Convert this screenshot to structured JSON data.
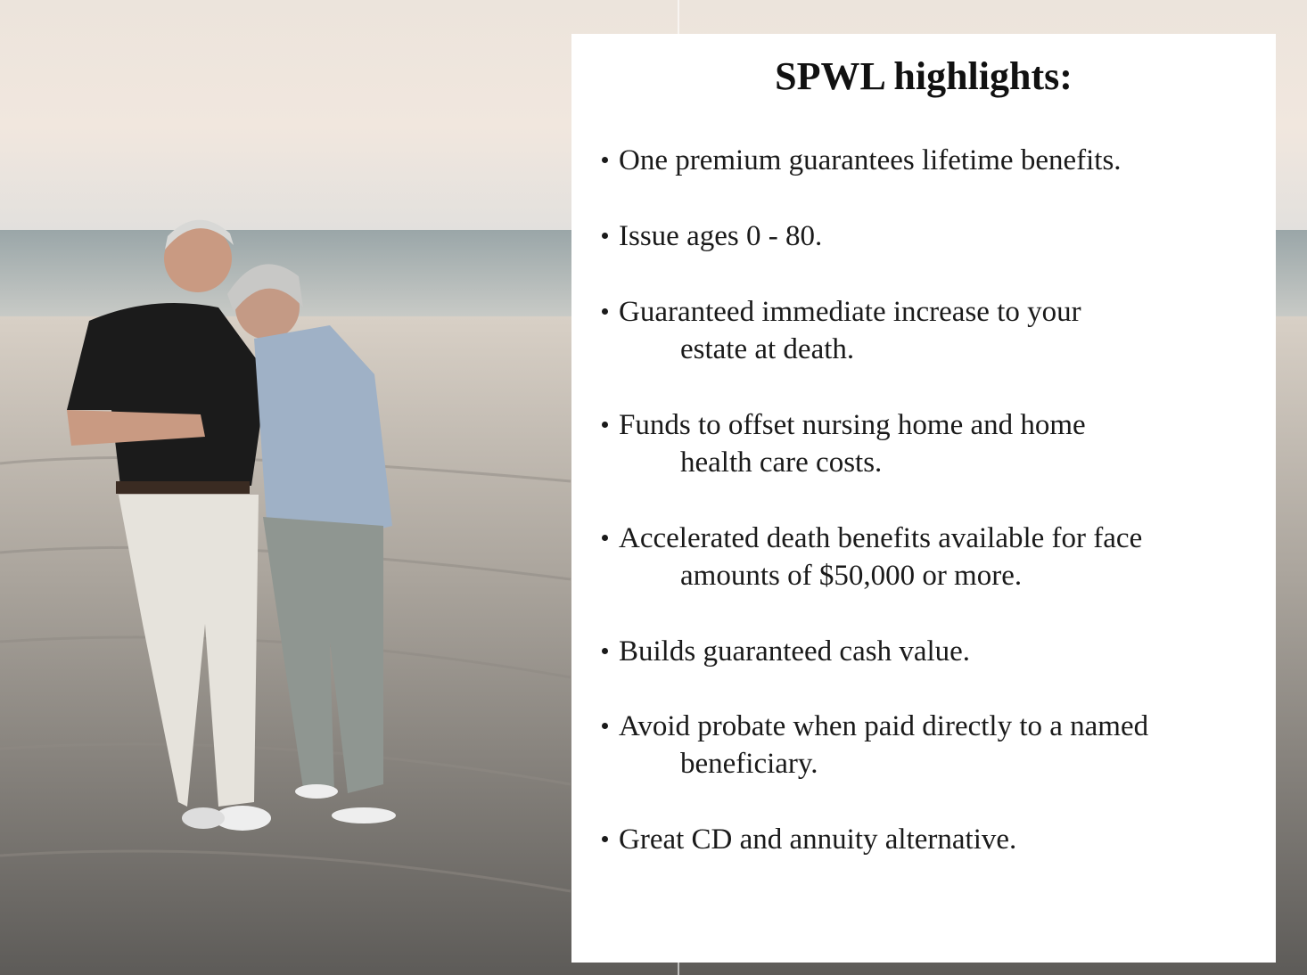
{
  "title": "SPWL highlights:",
  "highlights": [
    [
      "One premium guarantees lifetime benefits."
    ],
    [
      "Issue ages 0 - 80."
    ],
    [
      "Guaranteed immediate increase to your",
      "estate at death."
    ],
    [
      "Funds to offset nursing home and home",
      "health care costs."
    ],
    [
      "Accelerated death benefits available for face",
      "amounts of $50,000 or more."
    ],
    [
      "Builds guaranteed cash value."
    ],
    [
      "Avoid probate when paid directly to a named",
      "beneficiary."
    ],
    [
      "Great CD and annuity alternative."
    ]
  ]
}
